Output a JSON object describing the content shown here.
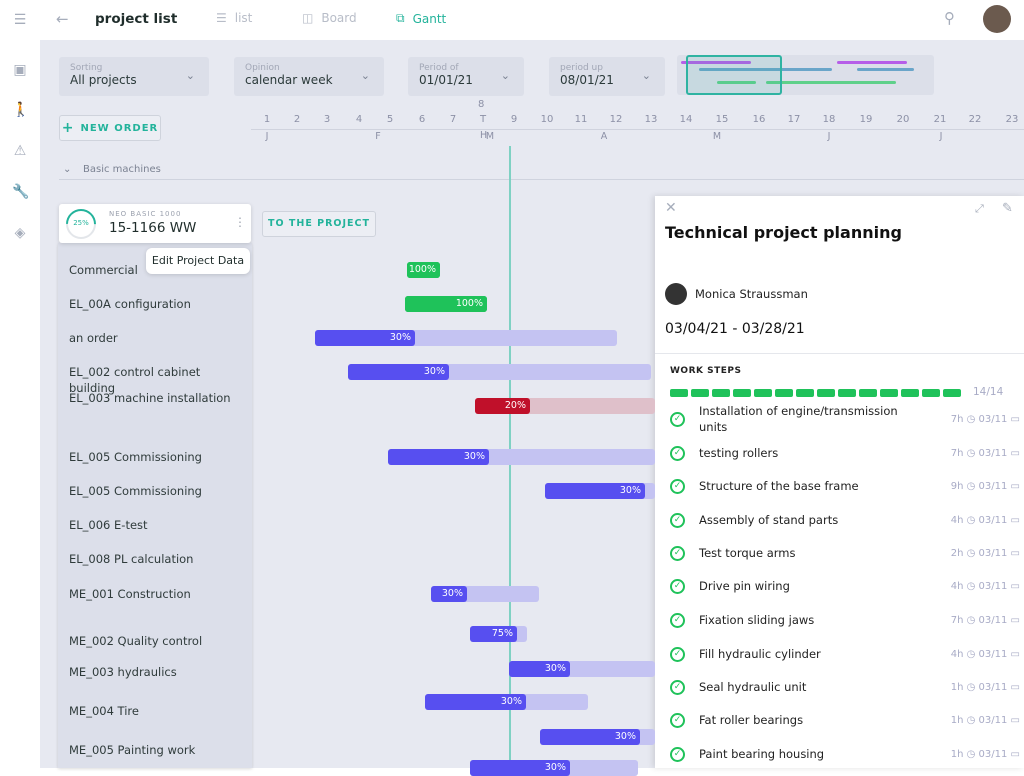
{
  "header": {
    "title": "project list",
    "tabs": [
      {
        "label": "list",
        "active": false
      },
      {
        "label": "Board",
        "active": false
      },
      {
        "label": "Gantt",
        "active": true
      }
    ]
  },
  "sidebar": {
    "icons": [
      "menu-icon",
      "clipboard-check-icon",
      "walking-person-icon",
      "warning-icon",
      "wrench-icon",
      "tag-icon"
    ]
  },
  "filters": [
    {
      "label": "Sorting",
      "value": "All projects"
    },
    {
      "label": "Opinion",
      "value": "calendar week"
    },
    {
      "label": "Period of",
      "value": "01/01/21"
    },
    {
      "label": "period up",
      "value": "08/01/21"
    }
  ],
  "new_order_label": "NEW ORDER",
  "timeline": {
    "weeks": [
      "1",
      "2",
      "3",
      "4",
      "5",
      "6",
      "7",
      "8",
      "9",
      "10",
      "11",
      "12",
      "13",
      "14",
      "15",
      "16",
      "17",
      "18",
      "19",
      "20",
      "21",
      "22",
      "23"
    ],
    "today_marker": [
      "T",
      "H"
    ],
    "months": [
      "J",
      "F",
      "M",
      "A",
      "M",
      "J",
      "J"
    ]
  },
  "group": {
    "label": "Basic machines"
  },
  "project": {
    "progress": "25%",
    "progress_value": 25,
    "subtitle": "NEO BASIC 1000",
    "name": "15-1166 WW",
    "to_project_label": "TO THE PROJECT",
    "tooltip": "Edit Project Data"
  },
  "tasks": [
    {
      "label": "Commercial",
      "percent": "100%",
      "status": "done"
    },
    {
      "label": "EL_00A configuration",
      "percent": "100%",
      "status": "done"
    },
    {
      "label": "an order",
      "percent": "30%",
      "status": "normal"
    },
    {
      "label": "EL_002 control cabinet building",
      "percent": "30%",
      "status": "normal"
    },
    {
      "label": "EL_003 machine installation",
      "percent": "20%",
      "status": "late"
    },
    {
      "label": "EL_005 Commissioning",
      "percent": "30%",
      "status": "normal"
    },
    {
      "label": "EL_005 Commissioning",
      "percent": "30%",
      "status": "normal"
    },
    {
      "label": "EL_006 E-test",
      "percent": "",
      "status": "none"
    },
    {
      "label": "EL_008 PL calculation",
      "percent": "",
      "status": "none"
    },
    {
      "label": "ME_001 Construction",
      "percent": "30%",
      "status": "normal"
    },
    {
      "label": "ME_002 Quality control",
      "percent": "75%",
      "status": "normal"
    },
    {
      "label": "ME_003 hydraulics",
      "percent": "30%",
      "status": "normal"
    },
    {
      "label": "ME_004 Tire",
      "percent": "30%",
      "status": "normal"
    },
    {
      "label": "ME_005 Painting work",
      "percent": "30%",
      "status": "normal"
    },
    {
      "label": "",
      "percent": "30%",
      "status": "normal"
    }
  ],
  "panel": {
    "title": "Technical project planning",
    "assignee": "Monica Straussman",
    "dates": "03/04/21 - 03/28/21",
    "section": "WORK STEPS",
    "progress_text": "14/14",
    "steps_done": 14,
    "steps_total": 14,
    "steps": [
      {
        "name": "Installation of engine/transmission units",
        "hours": "7h",
        "date": "03/11"
      },
      {
        "name": "testing rollers",
        "hours": "7h",
        "date": "03/11"
      },
      {
        "name": "Structure of the base frame",
        "hours": "9h",
        "date": "03/11"
      },
      {
        "name": "Assembly of stand parts",
        "hours": "4h",
        "date": "03/11"
      },
      {
        "name": "Test torque arms",
        "hours": "2h",
        "date": "03/11"
      },
      {
        "name": "Drive pin wiring",
        "hours": "4h",
        "date": "03/11"
      },
      {
        "name": "Fixation sliding jaws",
        "hours": "7h",
        "date": "03/11"
      },
      {
        "name": "Fill hydraulic cylinder",
        "hours": "4h",
        "date": "03/11"
      },
      {
        "name": "Seal hydraulic unit",
        "hours": "1h",
        "date": "03/11"
      },
      {
        "name": "Fat roller bearings",
        "hours": "1h",
        "date": "03/11"
      },
      {
        "name": "Paint bearing housing",
        "hours": "1h",
        "date": "03/11"
      }
    ]
  },
  "colors": {
    "accent": "#23b39b",
    "bar": "#574ff0",
    "bar_remaining": "#c4c3f2",
    "done": "#1fc25a",
    "late": "#c0102a"
  }
}
